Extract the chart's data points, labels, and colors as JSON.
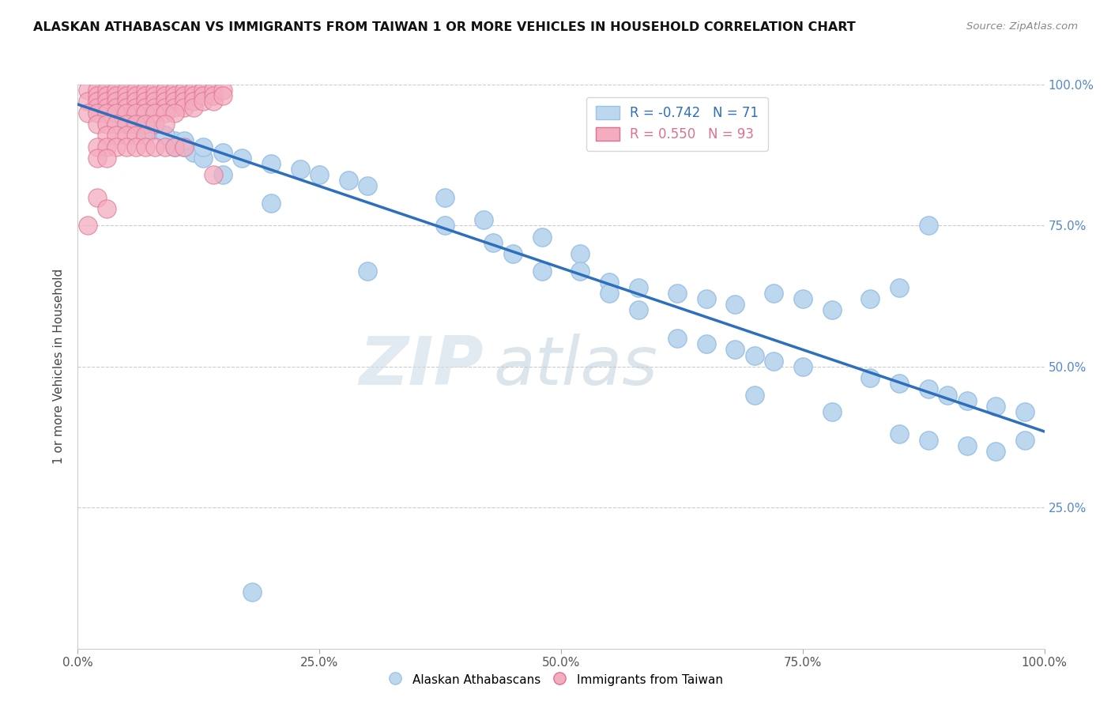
{
  "title": "ALASKAN ATHABASCAN VS IMMIGRANTS FROM TAIWAN 1 OR MORE VEHICLES IN HOUSEHOLD CORRELATION CHART",
  "source": "Source: ZipAtlas.com",
  "ylabel": "1 or more Vehicles in Household",
  "xlim": [
    0.0,
    1.0
  ],
  "ylim": [
    0.0,
    1.0
  ],
  "xticks": [
    0.0,
    0.25,
    0.5,
    0.75,
    1.0
  ],
  "yticks": [
    0.0,
    0.25,
    0.5,
    0.75,
    1.0
  ],
  "xticklabels": [
    "0.0%",
    "25.0%",
    "50.0%",
    "75.0%",
    "100.0%"
  ],
  "yticklabels": [
    "",
    "25.0%",
    "50.0%",
    "75.0%",
    "100.0%"
  ],
  "blue_R": -0.742,
  "blue_N": 71,
  "pink_R": 0.55,
  "pink_N": 93,
  "blue_color": "#bdd7ee",
  "blue_edge": "#9dc3e6",
  "pink_color": "#f4acbf",
  "pink_edge": "#e07090",
  "trendline_color": "#2e6fbd",
  "background_color": "#ffffff",
  "watermark_zip": "ZIP",
  "watermark_atlas": "atlas",
  "title_fontsize": 11.5,
  "blue_scatter_x": [
    0.02,
    0.03,
    0.04,
    0.05,
    0.06,
    0.07,
    0.08,
    0.09,
    0.1,
    0.11,
    0.12,
    0.13,
    0.05,
    0.07,
    0.09,
    0.11,
    0.13,
    0.15,
    0.17,
    0.2,
    0.23,
    0.25,
    0.28,
    0.3,
    0.1,
    0.15,
    0.2,
    0.38,
    0.42,
    0.48,
    0.52,
    0.38,
    0.43,
    0.45,
    0.52,
    0.58,
    0.55,
    0.62,
    0.65,
    0.68,
    0.72,
    0.75,
    0.78,
    0.82,
    0.85,
    0.88,
    0.62,
    0.65,
    0.68,
    0.7,
    0.72,
    0.75,
    0.82,
    0.85,
    0.88,
    0.9,
    0.92,
    0.95,
    0.98,
    0.85,
    0.88,
    0.92,
    0.95,
    0.98,
    0.7,
    0.78,
    0.48,
    0.55,
    0.58,
    0.3,
    0.18
  ],
  "blue_scatter_y": [
    0.97,
    0.96,
    0.95,
    0.95,
    0.94,
    0.93,
    0.92,
    0.91,
    0.9,
    0.89,
    0.88,
    0.87,
    0.93,
    0.92,
    0.91,
    0.9,
    0.89,
    0.88,
    0.87,
    0.86,
    0.85,
    0.84,
    0.83,
    0.82,
    0.89,
    0.84,
    0.79,
    0.8,
    0.76,
    0.73,
    0.7,
    0.75,
    0.72,
    0.7,
    0.67,
    0.64,
    0.65,
    0.63,
    0.62,
    0.61,
    0.63,
    0.62,
    0.6,
    0.62,
    0.64,
    0.75,
    0.55,
    0.54,
    0.53,
    0.52,
    0.51,
    0.5,
    0.48,
    0.47,
    0.46,
    0.45,
    0.44,
    0.43,
    0.42,
    0.38,
    0.37,
    0.36,
    0.35,
    0.37,
    0.45,
    0.42,
    0.67,
    0.63,
    0.6,
    0.67,
    0.1
  ],
  "pink_scatter_x": [
    0.01,
    0.01,
    0.02,
    0.02,
    0.02,
    0.02,
    0.03,
    0.03,
    0.03,
    0.03,
    0.04,
    0.04,
    0.04,
    0.04,
    0.05,
    0.05,
    0.05,
    0.05,
    0.06,
    0.06,
    0.06,
    0.06,
    0.07,
    0.07,
    0.07,
    0.07,
    0.08,
    0.08,
    0.08,
    0.08,
    0.09,
    0.09,
    0.09,
    0.09,
    0.1,
    0.1,
    0.1,
    0.1,
    0.11,
    0.11,
    0.11,
    0.11,
    0.12,
    0.12,
    0.12,
    0.12,
    0.13,
    0.13,
    0.13,
    0.14,
    0.14,
    0.14,
    0.15,
    0.15,
    0.01,
    0.02,
    0.03,
    0.04,
    0.05,
    0.06,
    0.07,
    0.08,
    0.09,
    0.1,
    0.02,
    0.03,
    0.04,
    0.05,
    0.06,
    0.07,
    0.08,
    0.09,
    0.03,
    0.04,
    0.05,
    0.06,
    0.07,
    0.02,
    0.03,
    0.04,
    0.05,
    0.06,
    0.07,
    0.08,
    0.09,
    0.1,
    0.11,
    0.02,
    0.03,
    0.14,
    0.01,
    0.02,
    0.03
  ],
  "pink_scatter_y": [
    0.99,
    0.97,
    0.99,
    0.98,
    0.97,
    0.96,
    0.99,
    0.98,
    0.97,
    0.96,
    0.99,
    0.98,
    0.97,
    0.96,
    0.99,
    0.98,
    0.97,
    0.96,
    0.99,
    0.98,
    0.97,
    0.96,
    0.99,
    0.98,
    0.97,
    0.96,
    0.99,
    0.98,
    0.97,
    0.96,
    0.99,
    0.98,
    0.97,
    0.96,
    0.99,
    0.98,
    0.97,
    0.96,
    0.99,
    0.98,
    0.97,
    0.96,
    0.99,
    0.98,
    0.97,
    0.96,
    0.99,
    0.98,
    0.97,
    0.99,
    0.98,
    0.97,
    0.99,
    0.98,
    0.95,
    0.95,
    0.95,
    0.95,
    0.95,
    0.95,
    0.95,
    0.95,
    0.95,
    0.95,
    0.93,
    0.93,
    0.93,
    0.93,
    0.93,
    0.93,
    0.93,
    0.93,
    0.91,
    0.91,
    0.91,
    0.91,
    0.91,
    0.89,
    0.89,
    0.89,
    0.89,
    0.89,
    0.89,
    0.89,
    0.89,
    0.89,
    0.89,
    0.87,
    0.87,
    0.84,
    0.75,
    0.8,
    0.78
  ],
  "trend_x_start": 0.0,
  "trend_x_end": 1.0,
  "trend_y_start": 0.965,
  "trend_y_end": 0.385
}
